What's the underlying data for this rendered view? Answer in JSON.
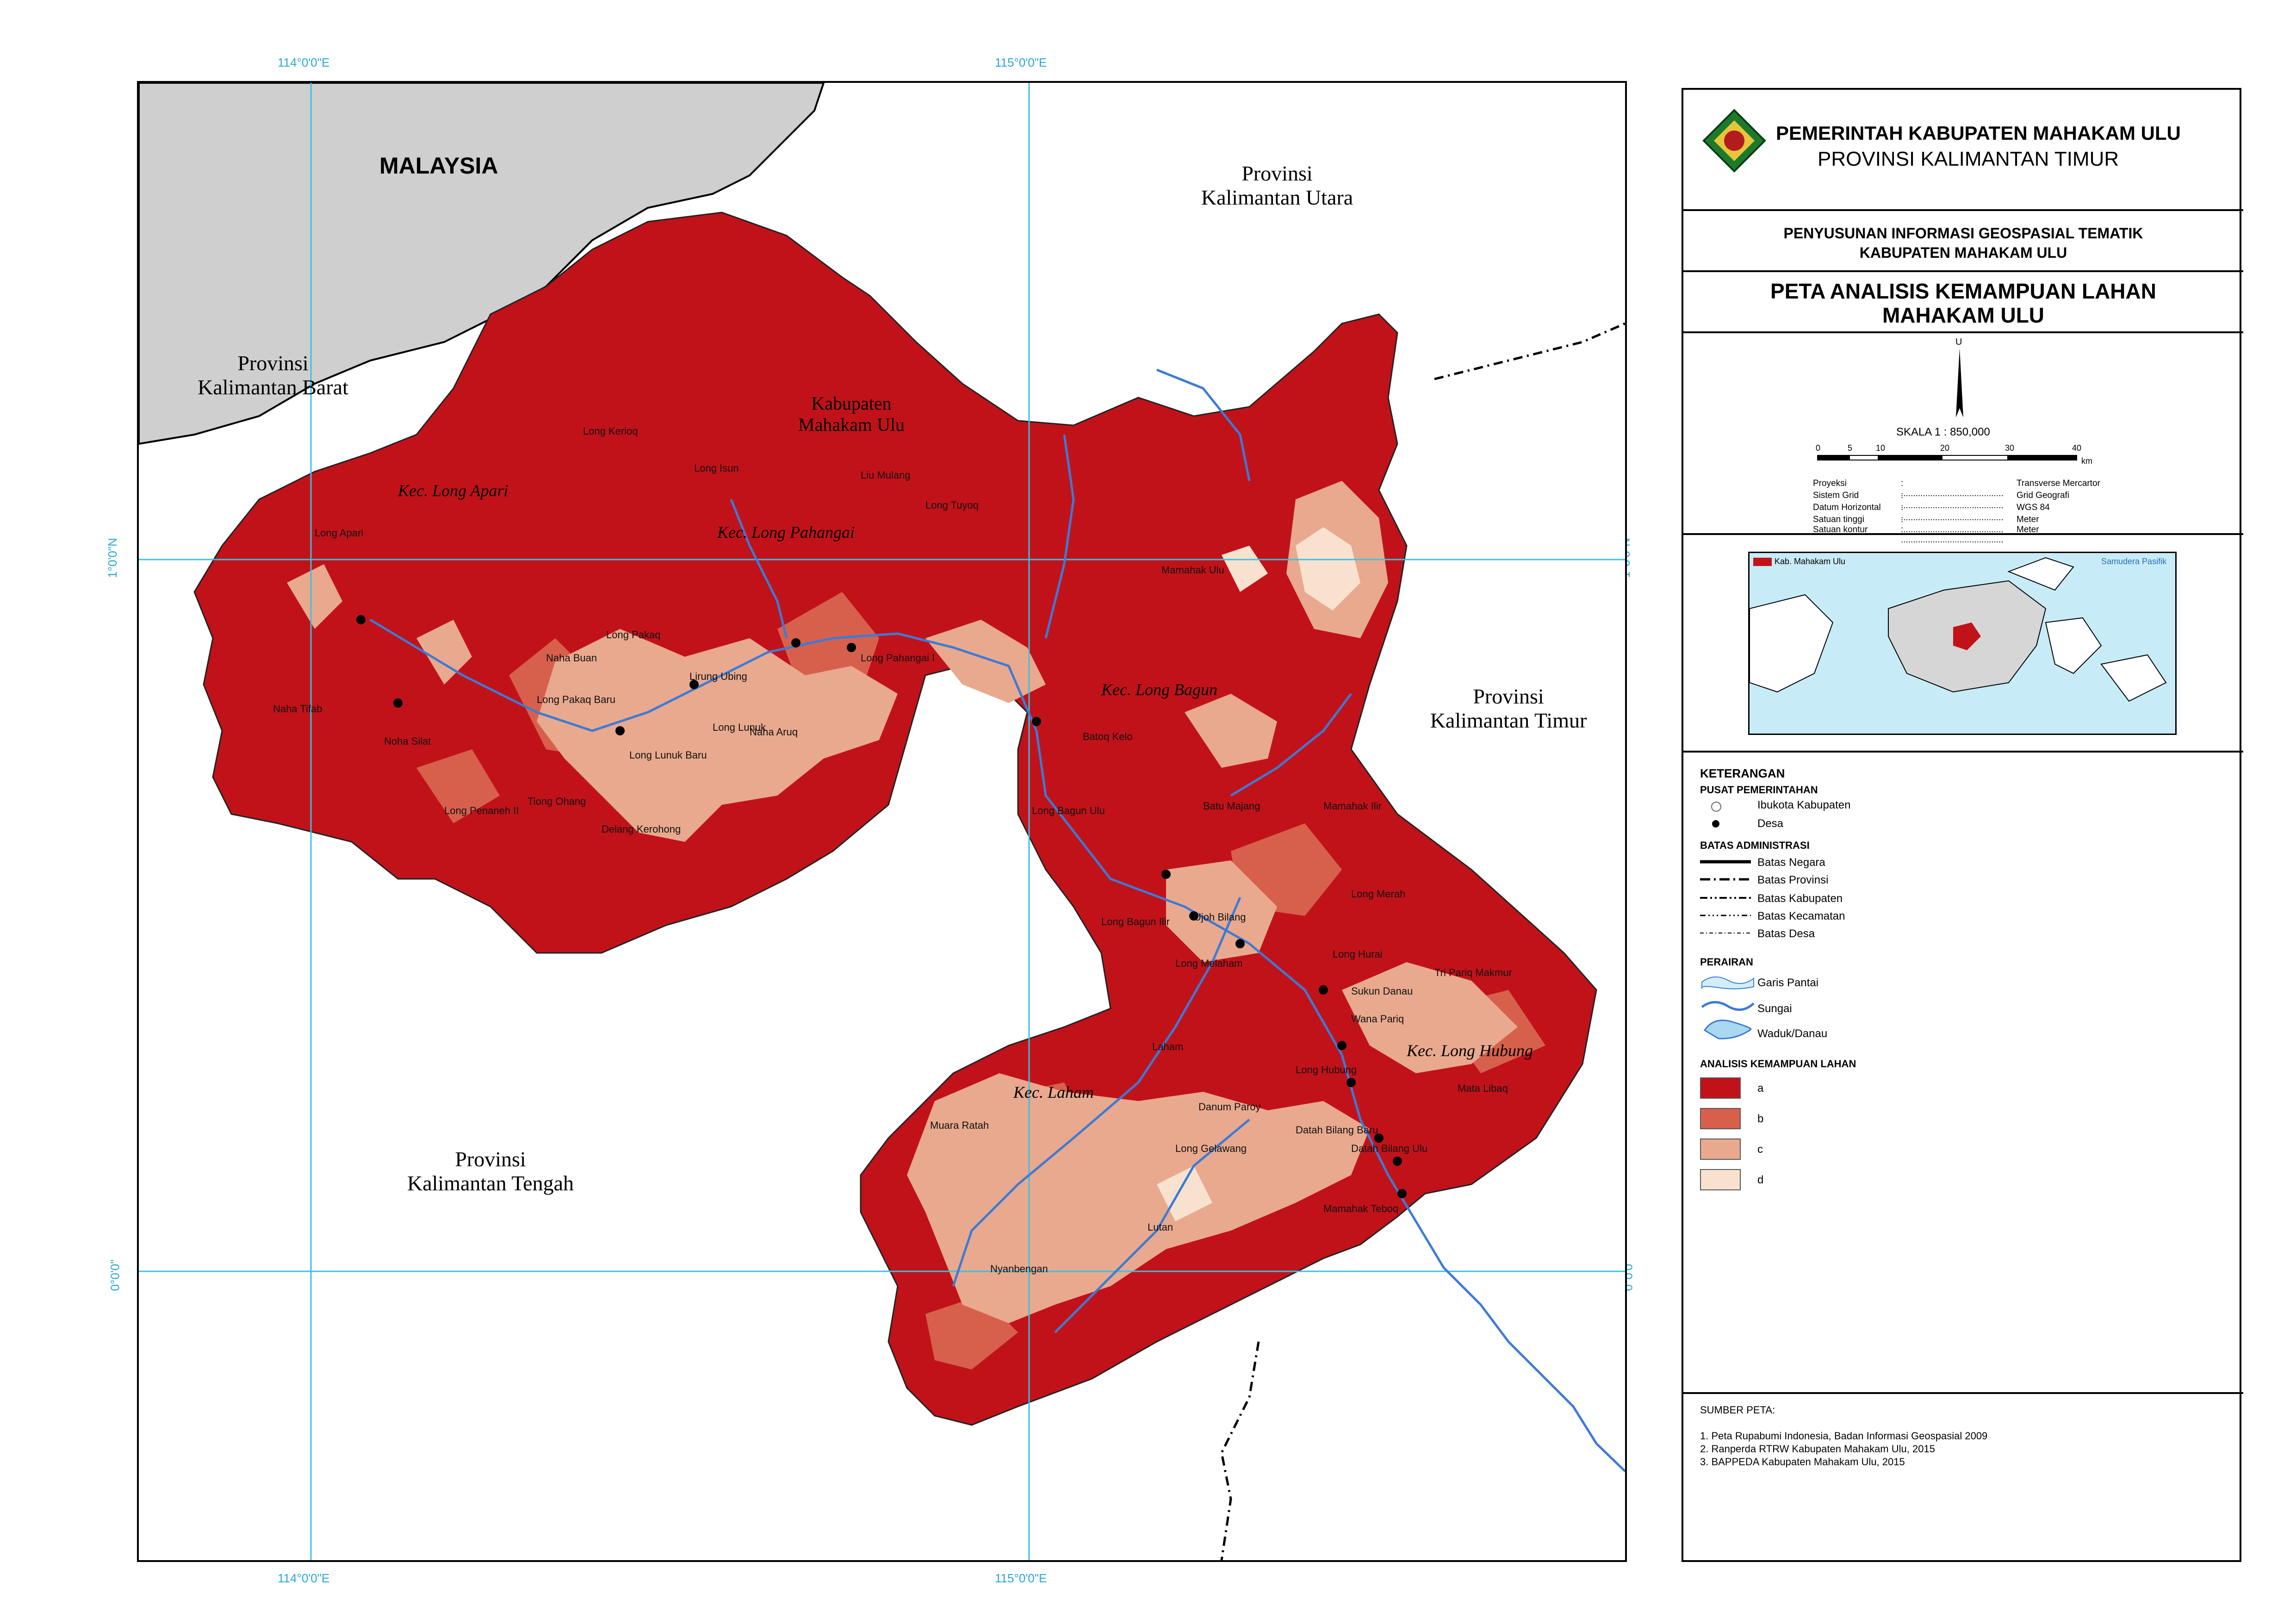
{
  "grid_labels": {
    "lon_left": "114°0'0\"E",
    "lon_right": "115°0'0\"E",
    "lat_top": "1°0'0\"N",
    "lat_bottom": "0°0'0\""
  },
  "regions": {
    "malaysia": "MALAYSIA",
    "kaltara": "Provinsi\nKalimantan Utara",
    "kalbar": "Provinsi\nKalimantan Barat",
    "kaltim": "Provinsi\nKalimantan Timur",
    "kalteng": "Provinsi\nKalimantan Tengah",
    "kabupaten": "Kabupaten\nMahakam Ulu"
  },
  "kecamatan": [
    "Kec. Long Apari",
    "Kec. Long Pahangai",
    "Kec. Long Bagun",
    "Kec. Long Hubung",
    "Kec. Laham"
  ],
  "villages": [
    "Long Kerioq",
    "Long Isun",
    "Liu Mulang",
    "Long Tuyoq",
    "Long Apari",
    "Naha Silat",
    "Naha Buan",
    "Long Pakaq",
    "Lirung Ubing",
    "Long Pahangai I",
    "Naha Tifab",
    "Noha Silat",
    "Long Penaneh II",
    "Long Pakaq Baru",
    "Long Lunuk",
    "Naha Aruq",
    "Long Lunuk Baru",
    "Tiong Ohang",
    "Delang Kerohong",
    "Long Penaneh II",
    "Mamahak Ulu",
    "Batoq Kelo",
    "Long Bagun Ulu",
    "Batu Majang",
    "Mamahak Ilir",
    "Long Bagun Ilir",
    "Ujoh Bilang",
    "Long Merah",
    "Long Melaham",
    "Long Hurai",
    "Sukun Danau",
    "Wana Pariq",
    "Tri Pariq Makmur",
    "Laham",
    "Long Hubung",
    "Mata Libaq",
    "Danum Paroy",
    "Muara Ratah",
    "Long Gelawang",
    "Datah Bilang Ulu",
    "Datah Bilang Baru",
    "Muara Ratah",
    "Lutan",
    "Mamahak Teboq",
    "Nyanbengan"
  ],
  "header": {
    "gov_line1": "PEMERINTAH KABUPATEN MAHAKAM ULU",
    "gov_line2": "PROVINSI KALIMANTAN TIMUR",
    "project_line1": "PENYUSUNAN INFORMASI GEOSPASIAL TEMATIK",
    "project_line2": "KABUPATEN MAHAKAM ULU",
    "title_line1": "PETA ANALISIS KEMAMPUAN LAHAN",
    "title_line2": "MAHAKAM ULU"
  },
  "scale": {
    "north": "U",
    "label": "SKALA 1 : 850,000",
    "ticks": [
      "0",
      "5",
      "10",
      "20",
      "30",
      "40"
    ],
    "unit": "km"
  },
  "projection_info": [
    {
      "key": "Proyeksi",
      "value": "Transverse Mercartor"
    },
    {
      "key": "Sistem Grid",
      "value": "Grid Geografi"
    },
    {
      "key": "Datum Horizontal",
      "value": "WGS 84"
    },
    {
      "key": "Satuan tinggi",
      "value": "Meter"
    },
    {
      "key": "Satuan kontur",
      "value": "Meter"
    }
  ],
  "inset": {
    "legend_label": "Kab. Mahakam Ulu",
    "sea_label": "Samudera Pasifik"
  },
  "legend": {
    "title": "KETERANGAN",
    "pusat_title": "PUSAT PEMERINTAHAN",
    "pusat": [
      "Ibukota Kabupaten",
      "Desa"
    ],
    "batas_title": "BATAS ADMINISTRASI",
    "batas": [
      "Batas Negara",
      "Batas Provinsi",
      "Batas Kabupaten",
      "Batas Kecamatan",
      "Batas Desa"
    ],
    "perairan_title": "PERAIRAN",
    "perairan": [
      "Garis Pantai",
      "Sungai",
      "Waduk/Danau"
    ],
    "kemampuan_title": "ANALISIS KEMAMPUAN LAHAN",
    "kemampuan": [
      {
        "label": "a",
        "color": "#c1121a"
      },
      {
        "label": "b",
        "color": "#d7604d"
      },
      {
        "label": "c",
        "color": "#e9a98e"
      },
      {
        "label": "d",
        "color": "#f8e2cf"
      }
    ]
  },
  "sources": {
    "title": "SUMBER PETA:",
    "items": [
      "1. Peta Rupabumi Indonesia, Badan Informasi Geospasial 2009",
      "2. Ranperda RTRW Kabupaten Mahakam Ulu, 2015",
      "3. BAPPEDA Kabupaten Mahakam Ulu, 2015"
    ]
  },
  "colors": {
    "river": "#3b7bd6",
    "grid": "#3cc0e0",
    "outside": "#cfcfcf"
  }
}
